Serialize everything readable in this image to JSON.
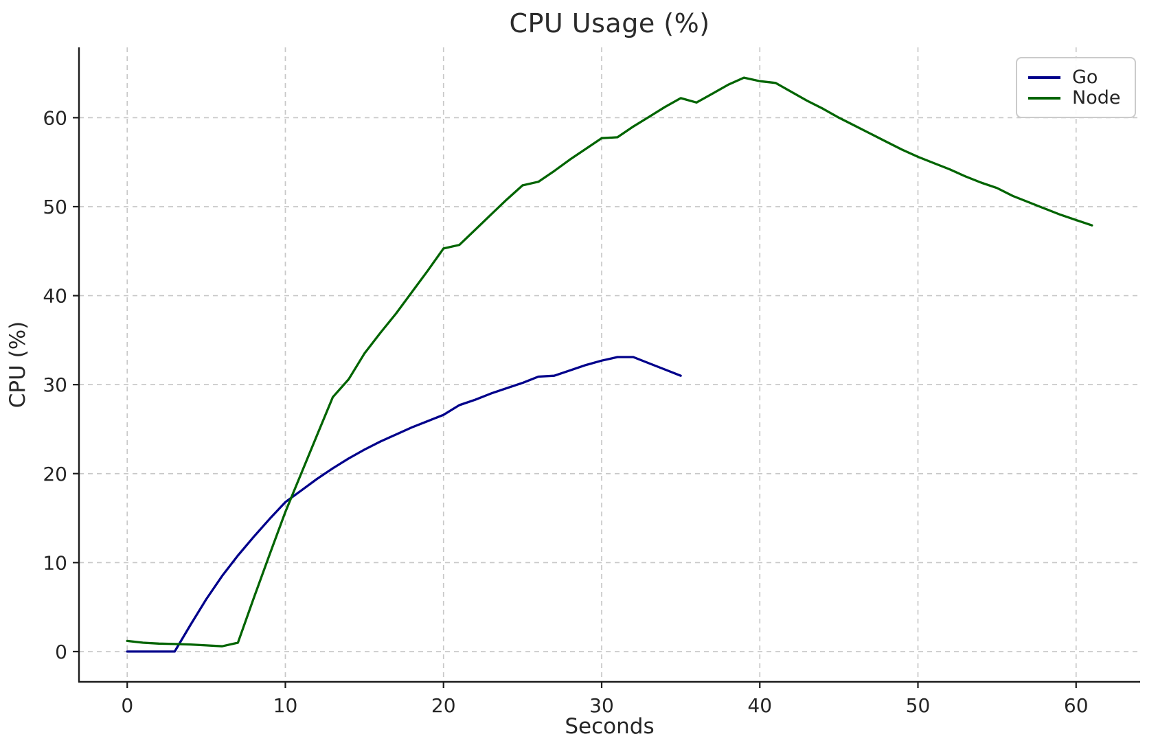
{
  "chart_data": {
    "type": "line",
    "title": "CPU Usage (%)",
    "xlabel": "Seconds",
    "ylabel": "CPU (%)",
    "xlim": [
      -3.05,
      64.05
    ],
    "ylim": [
      -3.4,
      67.9
    ],
    "xticks": [
      0,
      10,
      20,
      30,
      40,
      50,
      60
    ],
    "yticks": [
      0,
      10,
      20,
      30,
      40,
      50,
      60
    ],
    "grid": true,
    "grid_style": "dashed",
    "legend_position": "upper right",
    "colors": {
      "grid": "#c8c8c8",
      "axis": "#1c1c1c",
      "text": "#262626"
    },
    "series": [
      {
        "name": "Go",
        "color": "#00008B",
        "x": [
          0,
          1,
          2,
          3,
          4,
          5,
          6,
          7,
          8,
          9,
          10,
          11,
          12,
          13,
          14,
          15,
          16,
          17,
          18,
          19,
          20,
          21,
          22,
          23,
          24,
          25,
          26,
          27,
          28,
          29,
          30,
          31,
          32,
          33,
          34,
          35
        ],
        "values": [
          0,
          0,
          0,
          0,
          3.0,
          5.9,
          8.5,
          10.8,
          12.9,
          14.9,
          16.8,
          18.1,
          19.4,
          20.6,
          21.7,
          22.7,
          23.6,
          24.4,
          25.2,
          25.9,
          26.6,
          27.7,
          28.3,
          29.0,
          29.6,
          30.2,
          30.9,
          31.0,
          31.6,
          32.2,
          32.7,
          33.1,
          33.1,
          32.4,
          31.7,
          31.0
        ]
      },
      {
        "name": "Node",
        "color": "#006400",
        "x": [
          0,
          1,
          2,
          3,
          4,
          5,
          6,
          7,
          8,
          9,
          10,
          11,
          12,
          13,
          14,
          15,
          16,
          17,
          18,
          19,
          20,
          21,
          22,
          23,
          24,
          25,
          26,
          27,
          28,
          29,
          30,
          31,
          32,
          33,
          34,
          35,
          36,
          37,
          38,
          39,
          40,
          41,
          42,
          43,
          44,
          45,
          46,
          47,
          48,
          49,
          50,
          51,
          52,
          53,
          54,
          55,
          56,
          57,
          58,
          59,
          60,
          61
        ],
        "values": [
          1.2,
          1.0,
          0.9,
          0.85,
          0.8,
          0.7,
          0.6,
          1.0,
          6.0,
          10.9,
          15.7,
          20.0,
          24.3,
          28.6,
          30.6,
          33.5,
          35.8,
          38.0,
          40.4,
          42.8,
          45.3,
          45.7,
          47.4,
          49.1,
          50.8,
          52.4,
          52.8,
          54.0,
          55.3,
          56.5,
          57.7,
          57.8,
          59.0,
          60.1,
          61.2,
          62.2,
          61.7,
          62.7,
          63.7,
          64.5,
          64.1,
          63.9,
          62.9,
          61.9,
          61.0,
          60.0,
          59.1,
          58.2,
          57.3,
          56.4,
          55.6,
          54.9,
          54.2,
          53.4,
          52.7,
          52.1,
          51.2,
          50.5,
          49.8,
          49.1,
          48.5,
          47.9
        ]
      }
    ]
  }
}
